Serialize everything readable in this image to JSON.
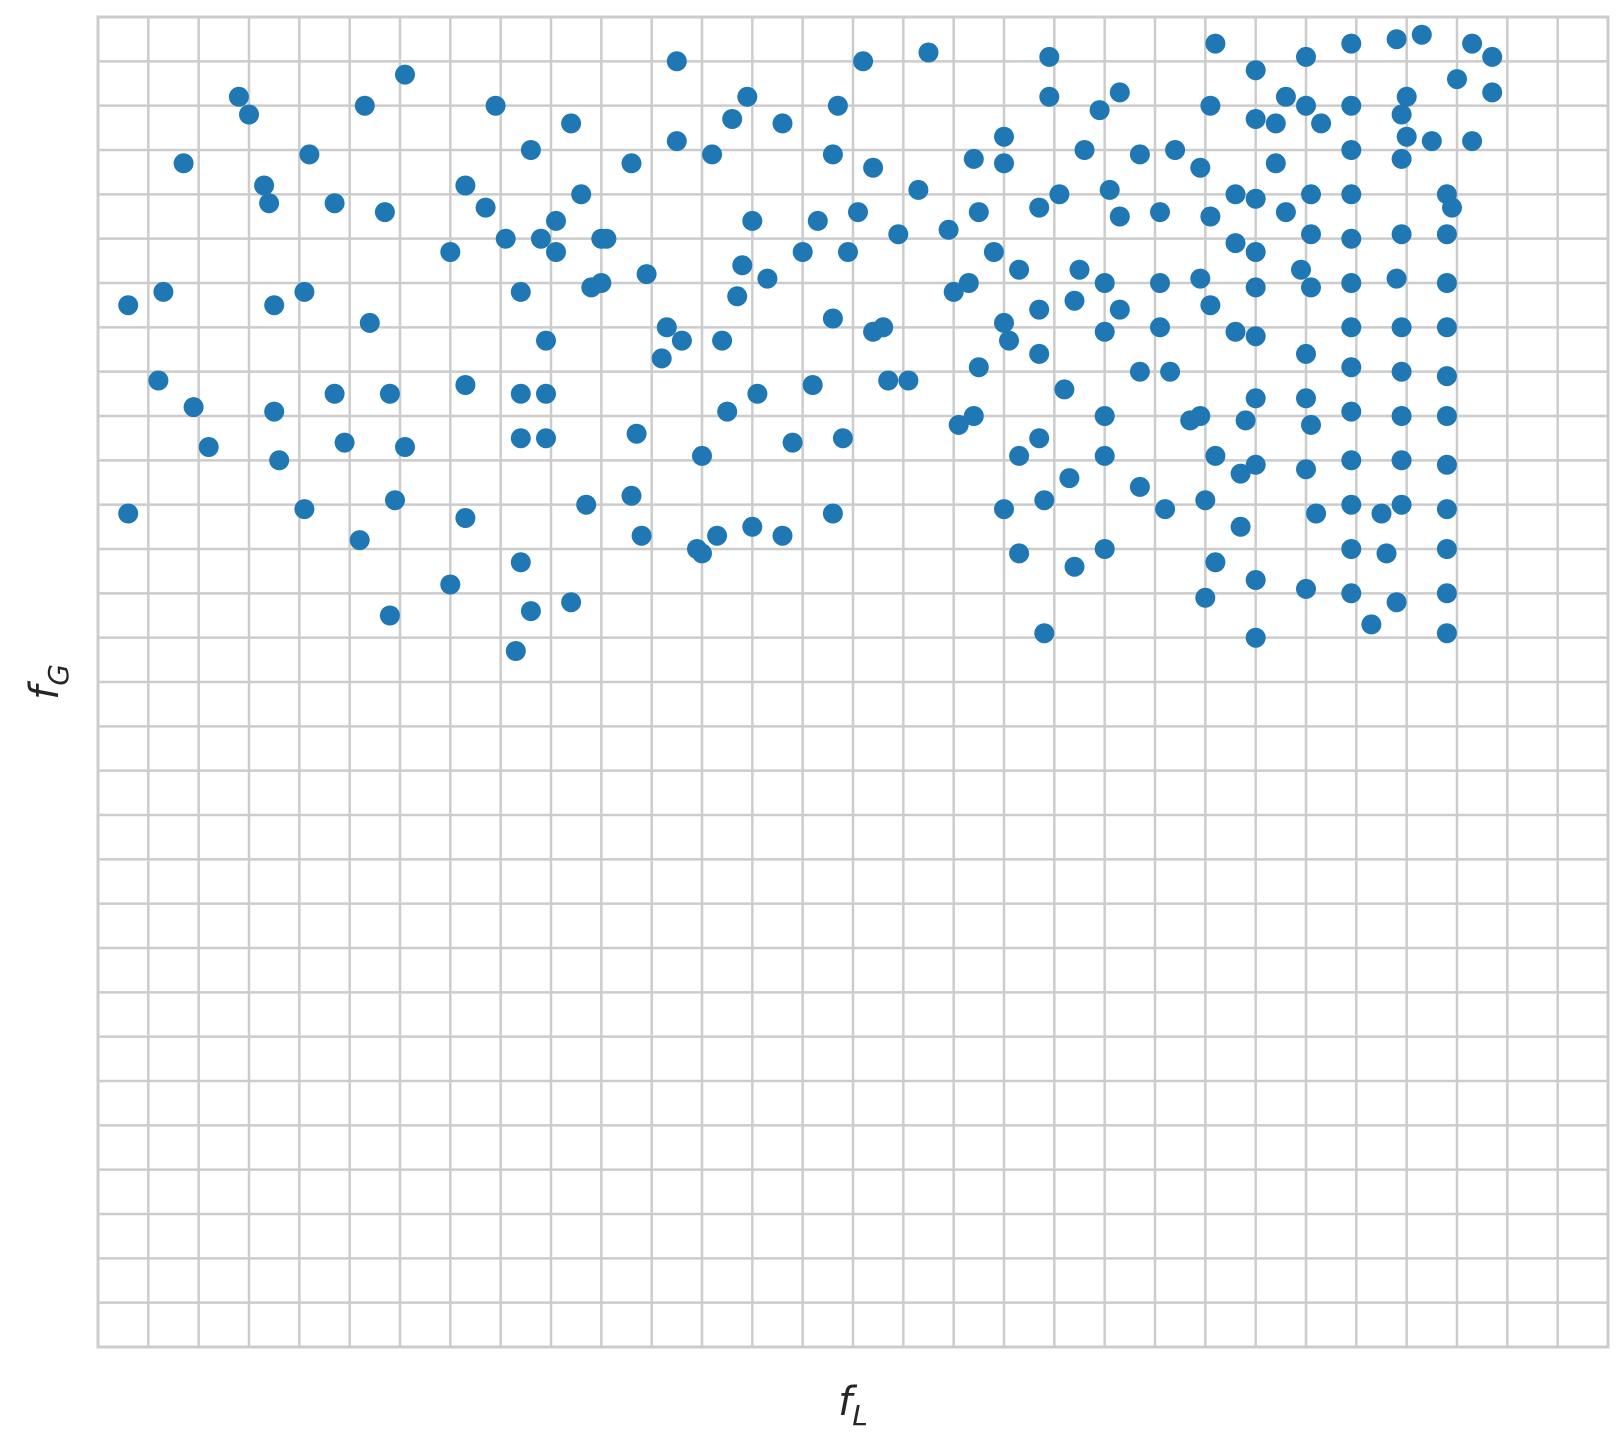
{
  "chart_data": {
    "type": "scatter",
    "title": "",
    "xlabel": "f",
    "xlabel_sub": "L",
    "ylabel": "f",
    "ylabel_sub": "G",
    "xlim": [
      0,
      30
    ],
    "ylim": [
      0,
      30
    ],
    "grid": true,
    "x_gridlines": [
      1,
      2,
      3,
      4,
      5,
      6,
      7,
      8,
      9,
      10,
      11,
      12,
      13,
      14,
      15,
      16,
      17,
      18,
      19,
      20,
      21,
      22,
      23,
      24,
      25,
      26,
      27,
      28,
      29
    ],
    "y_gridlines": [
      1,
      2,
      3,
      4,
      5,
      6,
      7,
      8,
      9,
      10,
      11,
      12,
      13,
      14,
      15,
      16,
      17,
      18,
      19,
      20,
      21,
      22,
      23,
      24,
      25,
      26,
      27,
      28,
      29
    ],
    "x_ticklabels": [],
    "y_ticklabels": [],
    "colors": {
      "marker": "#1f77b4",
      "grid": "#cccccc",
      "frame": "#cccccc",
      "text": "#262626"
    },
    "points": [
      [
        0.6,
        23.5
      ],
      [
        0.6,
        18.8
      ],
      [
        1.3,
        23.8
      ],
      [
        1.2,
        21.8
      ],
      [
        1.9,
        21.2
      ],
      [
        1.7,
        26.7
      ],
      [
        2.2,
        20.3
      ],
      [
        2.8,
        28.2
      ],
      [
        3.0,
        27.8
      ],
      [
        3.3,
        26.2
      ],
      [
        3.4,
        25.8
      ],
      [
        3.5,
        23.5
      ],
      [
        3.5,
        21.1
      ],
      [
        3.6,
        20.0
      ],
      [
        4.1,
        23.8
      ],
      [
        4.1,
        18.9
      ],
      [
        4.2,
        26.9
      ],
      [
        4.7,
        25.8
      ],
      [
        4.7,
        21.5
      ],
      [
        4.9,
        20.4
      ],
      [
        5.2,
        18.2
      ],
      [
        5.3,
        28.0
      ],
      [
        5.4,
        23.1
      ],
      [
        5.7,
        25.6
      ],
      [
        5.8,
        21.5
      ],
      [
        5.8,
        16.5
      ],
      [
        5.9,
        19.1
      ],
      [
        6.1,
        28.7
      ],
      [
        6.1,
        20.3
      ],
      [
        7.0,
        24.7
      ],
      [
        7.0,
        17.2
      ],
      [
        7.3,
        26.2
      ],
      [
        7.3,
        21.7
      ],
      [
        7.3,
        18.7
      ],
      [
        7.7,
        25.7
      ],
      [
        7.9,
        28.0
      ],
      [
        8.1,
        25.0
      ],
      [
        8.4,
        23.8
      ],
      [
        8.4,
        21.5
      ],
      [
        8.4,
        20.5
      ],
      [
        8.4,
        17.7
      ],
      [
        8.3,
        15.7
      ],
      [
        8.6,
        27.0
      ],
      [
        8.6,
        16.6
      ],
      [
        8.8,
        25.0
      ],
      [
        8.9,
        21.5
      ],
      [
        8.9,
        20.5
      ],
      [
        8.9,
        22.7
      ],
      [
        9.1,
        24.7
      ],
      [
        9.1,
        25.4
      ],
      [
        9.4,
        16.8
      ],
      [
        9.4,
        27.6
      ],
      [
        9.6,
        26.0
      ],
      [
        9.7,
        19.0
      ],
      [
        9.8,
        23.9
      ],
      [
        10.0,
        25.0
      ],
      [
        10.0,
        24.0
      ],
      [
        10.1,
        25.0
      ],
      [
        10.6,
        26.7
      ],
      [
        10.6,
        19.2
      ],
      [
        10.9,
        24.2
      ],
      [
        10.7,
        20.6
      ],
      [
        10.8,
        18.3
      ],
      [
        11.2,
        22.3
      ],
      [
        11.3,
        23.0
      ],
      [
        11.5,
        29.0
      ],
      [
        11.5,
        27.2
      ],
      [
        11.6,
        22.7
      ],
      [
        11.9,
        18.0
      ],
      [
        12.0,
        17.9
      ],
      [
        12.3,
        18.3
      ],
      [
        12.0,
        20.1
      ],
      [
        12.2,
        26.9
      ],
      [
        12.4,
        22.7
      ],
      [
        12.5,
        21.1
      ],
      [
        12.7,
        23.7
      ],
      [
        12.8,
        24.4
      ],
      [
        12.6,
        27.7
      ],
      [
        12.9,
        28.2
      ],
      [
        13.0,
        25.4
      ],
      [
        13.0,
        18.5
      ],
      [
        13.1,
        21.5
      ],
      [
        13.3,
        24.1
      ],
      [
        13.6,
        27.6
      ],
      [
        13.8,
        20.4
      ],
      [
        13.6,
        18.3
      ],
      [
        14.0,
        24.7
      ],
      [
        14.2,
        21.7
      ],
      [
        14.3,
        25.4
      ],
      [
        14.6,
        26.9
      ],
      [
        14.6,
        23.2
      ],
      [
        14.6,
        18.8
      ],
      [
        14.7,
        28.0
      ],
      [
        14.8,
        20.5
      ],
      [
        14.9,
        24.7
      ],
      [
        15.1,
        25.6
      ],
      [
        15.2,
        29.0
      ],
      [
        15.4,
        26.6
      ],
      [
        15.4,
        22.9
      ],
      [
        15.6,
        23.0
      ],
      [
        15.7,
        21.8
      ],
      [
        15.9,
        25.1
      ],
      [
        16.1,
        21.8
      ],
      [
        16.3,
        26.1
      ],
      [
        16.5,
        29.2
      ],
      [
        16.9,
        25.2
      ],
      [
        17.0,
        23.8
      ],
      [
        17.1,
        20.8
      ],
      [
        17.3,
        24.0
      ],
      [
        17.4,
        26.8
      ],
      [
        17.4,
        21.0
      ],
      [
        17.5,
        25.6
      ],
      [
        17.5,
        22.1
      ],
      [
        17.8,
        24.7
      ],
      [
        18.0,
        27.3
      ],
      [
        18.0,
        26.7
      ],
      [
        18.0,
        23.1
      ],
      [
        18.0,
        18.9
      ],
      [
        18.1,
        22.7
      ],
      [
        18.3,
        24.3
      ],
      [
        18.3,
        20.1
      ],
      [
        18.3,
        17.9
      ],
      [
        18.7,
        20.5
      ],
      [
        18.7,
        23.4
      ],
      [
        18.7,
        25.7
      ],
      [
        18.7,
        22.4
      ],
      [
        18.8,
        19.1
      ],
      [
        18.8,
        16.1
      ],
      [
        18.9,
        29.1
      ],
      [
        18.9,
        28.2
      ],
      [
        19.1,
        26.0
      ],
      [
        19.2,
        21.6
      ],
      [
        19.3,
        19.6
      ],
      [
        19.4,
        17.6
      ],
      [
        19.4,
        23.6
      ],
      [
        19.5,
        24.3
      ],
      [
        19.6,
        27.0
      ],
      [
        19.9,
        27.9
      ],
      [
        20.0,
        24.0
      ],
      [
        20.0,
        22.9
      ],
      [
        20.0,
        21.0
      ],
      [
        20.0,
        20.1
      ],
      [
        20.0,
        18.0
      ],
      [
        20.1,
        26.1
      ],
      [
        20.3,
        28.3
      ],
      [
        20.3,
        25.5
      ],
      [
        20.3,
        23.4
      ],
      [
        20.7,
        22.0
      ],
      [
        20.7,
        19.4
      ],
      [
        20.7,
        26.9
      ],
      [
        21.1,
        25.6
      ],
      [
        21.1,
        24.0
      ],
      [
        21.1,
        23.0
      ],
      [
        21.2,
        18.9
      ],
      [
        21.3,
        22.0
      ],
      [
        21.4,
        27.0
      ],
      [
        21.7,
        20.9
      ],
      [
        21.9,
        24.1
      ],
      [
        21.9,
        26.6
      ],
      [
        21.9,
        21.0
      ],
      [
        22.0,
        19.1
      ],
      [
        22.0,
        16.9
      ],
      [
        22.1,
        25.5
      ],
      [
        22.1,
        28.0
      ],
      [
        22.1,
        23.5
      ],
      [
        22.2,
        29.4
      ],
      [
        22.2,
        20.1
      ],
      [
        22.2,
        17.7
      ],
      [
        22.6,
        22.9
      ],
      [
        22.6,
        24.9
      ],
      [
        22.6,
        26.0
      ],
      [
        22.7,
        19.7
      ],
      [
        22.7,
        18.5
      ],
      [
        22.8,
        20.9
      ],
      [
        23.0,
        28.8
      ],
      [
        23.0,
        27.7
      ],
      [
        23.0,
        24.7
      ],
      [
        23.0,
        21.4
      ],
      [
        23.0,
        23.9
      ],
      [
        23.0,
        25.9
      ],
      [
        23.0,
        22.8
      ],
      [
        23.0,
        19.9
      ],
      [
        23.0,
        17.3
      ],
      [
        23.0,
        16.0
      ],
      [
        23.4,
        26.7
      ],
      [
        23.4,
        27.6
      ],
      [
        23.6,
        28.2
      ],
      [
        23.6,
        25.6
      ],
      [
        23.9,
        24.3
      ],
      [
        24.0,
        29.1
      ],
      [
        24.0,
        28.0
      ],
      [
        24.0,
        21.4
      ],
      [
        24.0,
        22.4
      ],
      [
        24.0,
        19.8
      ],
      [
        24.0,
        17.1
      ],
      [
        24.1,
        23.9
      ],
      [
        24.1,
        26.0
      ],
      [
        24.1,
        25.1
      ],
      [
        24.1,
        20.8
      ],
      [
        24.2,
        18.8
      ],
      [
        24.3,
        27.6
      ],
      [
        24.9,
        29.4
      ],
      [
        24.9,
        28.0
      ],
      [
        24.9,
        27.0
      ],
      [
        24.9,
        26.0
      ],
      [
        24.9,
        25.0
      ],
      [
        24.9,
        24.0
      ],
      [
        24.9,
        23.0
      ],
      [
        24.9,
        22.1
      ],
      [
        24.9,
        21.1
      ],
      [
        24.9,
        20.0
      ],
      [
        24.9,
        19.0
      ],
      [
        24.9,
        18.0
      ],
      [
        24.9,
        17.0
      ],
      [
        25.3,
        16.3
      ],
      [
        25.5,
        18.8
      ],
      [
        25.6,
        17.9
      ],
      [
        25.8,
        29.5
      ],
      [
        25.9,
        27.8
      ],
      [
        25.9,
        26.8
      ],
      [
        25.8,
        24.1
      ],
      [
        25.9,
        25.1
      ],
      [
        25.9,
        23.0
      ],
      [
        25.9,
        22.0
      ],
      [
        25.9,
        21.0
      ],
      [
        25.9,
        20.0
      ],
      [
        25.9,
        19.0
      ],
      [
        25.8,
        16.8
      ],
      [
        26.0,
        28.2
      ],
      [
        26.0,
        27.3
      ],
      [
        26.3,
        29.6
      ],
      [
        26.5,
        27.2
      ],
      [
        26.8,
        26.0
      ],
      [
        26.8,
        24.0
      ],
      [
        26.8,
        25.1
      ],
      [
        26.8,
        23.0
      ],
      [
        26.8,
        21.9
      ],
      [
        26.8,
        21.0
      ],
      [
        26.8,
        19.9
      ],
      [
        26.8,
        18.9
      ],
      [
        26.8,
        18.0
      ],
      [
        26.8,
        17.0
      ],
      [
        26.8,
        16.1
      ],
      [
        26.9,
        25.7
      ],
      [
        27.0,
        28.6
      ],
      [
        27.3,
        27.2
      ],
      [
        27.3,
        29.4
      ],
      [
        27.7,
        29.1
      ],
      [
        27.7,
        28.3
      ]
    ]
  }
}
